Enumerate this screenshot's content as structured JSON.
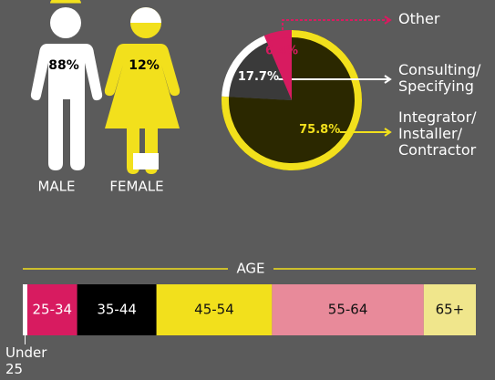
{
  "chart_data": [
    {
      "type": "icon",
      "categories": [
        "MALE",
        "FEMALE"
      ],
      "values": [
        88,
        12
      ],
      "value_labels": [
        "88%",
        "12%"
      ],
      "colors": [
        "#ffffff",
        "#f2e01c"
      ]
    },
    {
      "type": "pie",
      "categories": [
        "Integrator/\nInstaller/\nContractor",
        "Consulting/\nSpecifying",
        "Other"
      ],
      "values": [
        75.8,
        17.7,
        6.4
      ],
      "value_labels": [
        "75.8%",
        "17.7%",
        "6.4%"
      ],
      "colors": [
        "#2b2800",
        "#3a3a3a",
        "#d81b60"
      ],
      "ring_colors": [
        "#f2e01c",
        "#ffffff",
        "#d81b60"
      ],
      "label_colors": [
        "#f2e01c",
        "#ffffff",
        "#d81b60"
      ]
    },
    {
      "type": "stacked_bar",
      "title": "AGE",
      "series": [
        {
          "name": "Under\n25",
          "color": "#ffffff",
          "values": [
            1
          ]
        },
        {
          "name": "25-34",
          "color": "#d81b60",
          "values": [
            11
          ]
        },
        {
          "name": "35-44",
          "color": "#000000",
          "values": [
            17.5
          ]
        },
        {
          "name": "45-54",
          "color": "#f2e01c",
          "values": [
            25.5
          ]
        },
        {
          "name": "55-64",
          "color": "#e88a9a",
          "values": [
            33.5
          ]
        },
        {
          "name": "65+",
          "color": "#f0e68c",
          "values": [
            11.5
          ]
        }
      ]
    }
  ]
}
